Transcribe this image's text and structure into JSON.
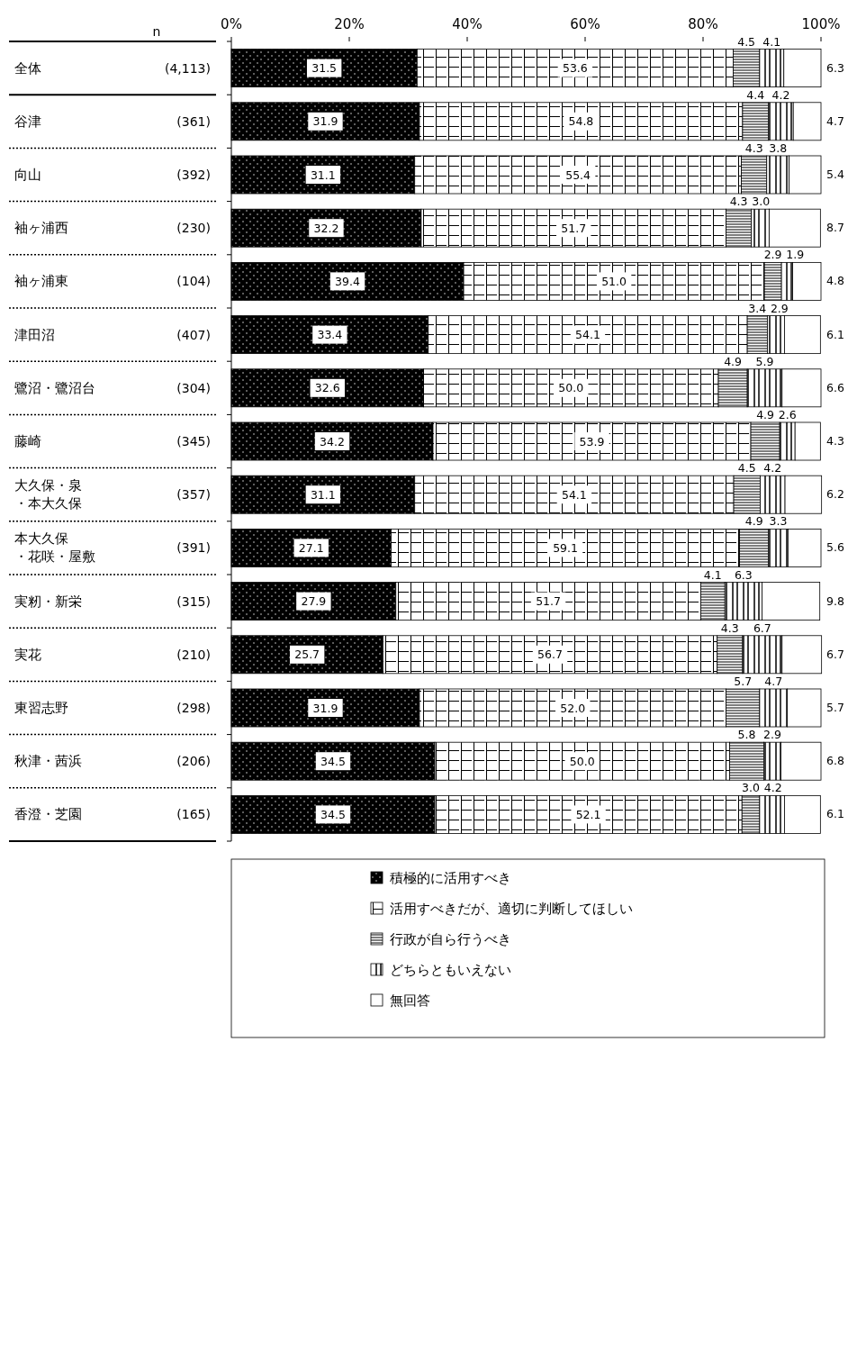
{
  "chart_data": {
    "type": "bar",
    "orientation": "horizontal",
    "stacked": true,
    "categories": [
      "全体 (4,113)",
      "谷津 (361)",
      "向山 (392)",
      "袖ヶ浦西 (230)",
      "袖ヶ浦東 (104)",
      "津田沼 (407)",
      "鷺沼・鷺沼台 (304)",
      "藤崎 (345)",
      "大久保・泉・本大久保 (357)",
      "本大久保・花咲・屋敷 (391)",
      "実籾・新栄 (315)",
      "実花 (210)",
      "東習志野 (298)",
      "秋津・茜浜 (206)",
      "香澄・芝園 (165)"
    ],
    "xlim": [
      0,
      100
    ],
    "xticks": [
      {
        "value": 0,
        "label": "0%"
      },
      {
        "value": 20,
        "label": "20%"
      },
      {
        "value": 40,
        "label": "40%"
      },
      {
        "value": 60,
        "label": "60%"
      },
      {
        "value": 80,
        "label": "80%"
      },
      {
        "value": 100,
        "label": "100%"
      }
    ],
    "series": [
      {
        "name": "積極的に活用すべき",
        "color": "#000000",
        "values": [
          31.5,
          31.9,
          31.1,
          32.2,
          39.4,
          33.4,
          32.6,
          34.2,
          31.1,
          27.1,
          27.9,
          25.7,
          31.9,
          34.5,
          34.5
        ],
        "value_labels": [
          "31.5",
          "31.9",
          "31.1",
          "32.2",
          "39.4",
          "33.4",
          "32.6",
          "34.2",
          "31.1",
          "27.1",
          "27.9",
          "25.7",
          "31.9",
          "34.5",
          "34.5"
        ]
      },
      {
        "name": "活用すべきだが、適切に判断してほしい",
        "color": "#000000",
        "values": [
          53.6,
          54.8,
          55.4,
          51.7,
          51.0,
          54.1,
          50.0,
          53.9,
          54.1,
          59.1,
          51.7,
          56.7,
          52.0,
          50.0,
          52.1
        ],
        "value_labels": [
          "53.6",
          "54.8",
          "55.4",
          "51.7",
          "51.0",
          "54.1",
          "50.0",
          "53.9",
          "54.1",
          "59.1",
          "51.7",
          "56.7",
          "52.0",
          "50.0",
          "52.1"
        ]
      },
      {
        "name": "行政が自ら行うべき",
        "color": "#000000",
        "values": [
          4.5,
          4.4,
          4.3,
          4.3,
          2.9,
          3.4,
          4.9,
          4.9,
          4.5,
          4.9,
          4.1,
          4.3,
          5.7,
          5.8,
          3.0
        ],
        "value_labels": [
          "4.5",
          "4.4",
          "4.3",
          "4.3",
          "2.9",
          "3.4",
          "4.9",
          "4.9",
          "4.5",
          "4.9",
          "4.1",
          "4.3",
          "5.7",
          "5.8",
          "3.0"
        ]
      },
      {
        "name": "どちらともいえない",
        "color": "#000000",
        "values": [
          4.1,
          4.2,
          3.8,
          3.0,
          1.9,
          2.9,
          5.9,
          2.6,
          4.2,
          3.3,
          6.3,
          6.7,
          4.7,
          2.9,
          4.2
        ],
        "value_labels": [
          "4.1",
          "4.2",
          "3.8",
          "3.0",
          "1.9",
          "2.9",
          "5.9",
          "2.6",
          "4.2",
          "3.3",
          "6.3",
          "6.7",
          "4.7",
          "2.9",
          "4.2"
        ]
      },
      {
        "name": "無回答",
        "color": "#ffffff",
        "values": [
          6.3,
          4.7,
          5.4,
          8.7,
          4.8,
          6.1,
          6.6,
          4.3,
          6.2,
          5.6,
          9.8,
          6.7,
          5.7,
          6.8,
          6.1
        ],
        "value_labels": [
          "6.3",
          "4.7",
          "5.4",
          "8.7",
          "4.8",
          "6.1",
          "6.6",
          "4.3",
          "6.2",
          "5.6",
          "9.8",
          "6.7",
          "5.7",
          "6.8",
          "6.1"
        ]
      }
    ],
    "legend": "bottom",
    "annotations": [
      "n"
    ]
  }
}
